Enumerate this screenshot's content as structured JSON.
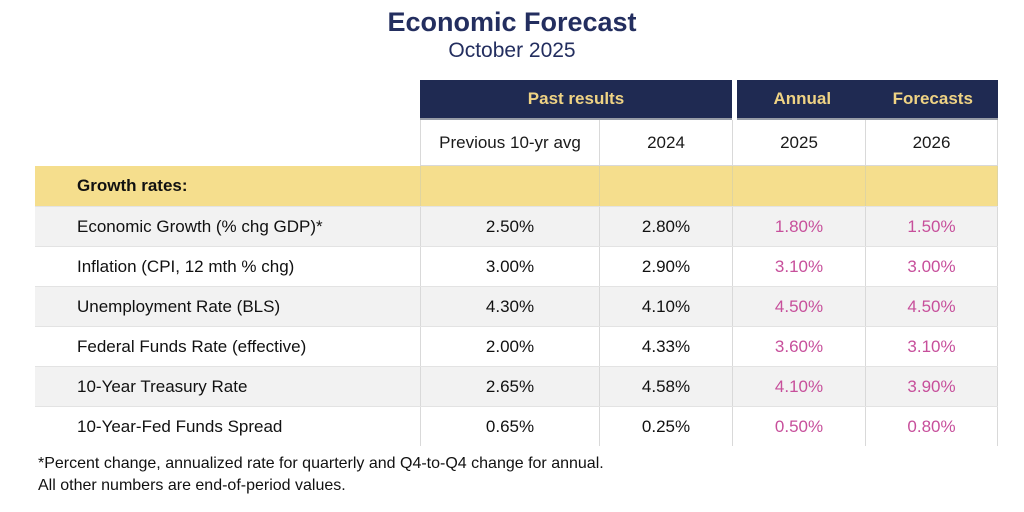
{
  "title": "Economic Forecast",
  "subtitle": "October 2025",
  "header": {
    "past_results": "Past results",
    "annual": "Annual",
    "forecasts": "Forecasts"
  },
  "columns": [
    "Previous 10-yr avg",
    "2024",
    "2025",
    "2026"
  ],
  "section_label": "Growth rates:",
  "table": {
    "rows": [
      {
        "label": "Economic Growth (% chg GDP)*",
        "values": [
          "2.50%",
          "2.80%",
          "1.80%",
          "1.50%"
        ]
      },
      {
        "label": "Inflation (CPI, 12 mth % chg)",
        "values": [
          "3.00%",
          "2.90%",
          "3.10%",
          "3.00%"
        ]
      },
      {
        "label": "Unemployment Rate (BLS)",
        "values": [
          "4.30%",
          "4.10%",
          "4.50%",
          "4.50%"
        ]
      },
      {
        "label": "Federal Funds Rate (effective)",
        "values": [
          "2.00%",
          "4.33%",
          "3.60%",
          "3.10%"
        ]
      },
      {
        "label": "10-Year Treasury Rate",
        "values": [
          "2.65%",
          "4.58%",
          "4.10%",
          "3.90%"
        ]
      },
      {
        "label": "10-Year-Fed Funds Spread",
        "values": [
          "0.65%",
          "0.25%",
          "0.50%",
          "0.80%"
        ]
      }
    ]
  },
  "footnote": {
    "line1": "*Percent change, annualized rate for quarterly and Q4-to-Q4 change for annual.",
    "line2": "All other numbers are end-of-period values."
  },
  "colors": {
    "navy_header_bg": "#1f2a52",
    "header_text_yellow": "#efd384",
    "title_navy": "#232e5f",
    "section_band_yellow": "#f5de8d",
    "forecast_pink": "#c74f9b",
    "row_stripe_gray": "#f2f2f2"
  },
  "chart_data": {
    "type": "table",
    "title": "Economic Forecast",
    "subtitle": "October 2025",
    "column_groups": [
      {
        "label": "Past results",
        "columns": [
          "Previous 10-yr avg",
          "2024"
        ]
      },
      {
        "label": "Annual Forecasts",
        "columns": [
          "2025",
          "2026"
        ]
      }
    ],
    "columns": [
      "Previous 10-yr avg",
      "2024",
      "2025",
      "2026"
    ],
    "section": "Growth rates:",
    "rows": [
      {
        "label": "Economic Growth (% chg GDP)*",
        "values_pct": [
          2.5,
          2.8,
          1.8,
          1.5
        ]
      },
      {
        "label": "Inflation (CPI, 12 mth % chg)",
        "values_pct": [
          3.0,
          2.9,
          3.1,
          3.0
        ]
      },
      {
        "label": "Unemployment Rate (BLS)",
        "values_pct": [
          4.3,
          4.1,
          4.5,
          4.5
        ]
      },
      {
        "label": "Federal Funds Rate (effective)",
        "values_pct": [
          2.0,
          4.33,
          3.6,
          3.1
        ]
      },
      {
        "label": "10-Year Treasury Rate",
        "values_pct": [
          2.65,
          4.58,
          4.1,
          3.9
        ]
      },
      {
        "label": "10-Year-Fed Funds Spread",
        "values_pct": [
          0.65,
          0.25,
          0.5,
          0.8
        ]
      }
    ],
    "footnote": "*Percent change, annualized rate for quarterly and Q4-to-Q4 change for annual. All other numbers are end-of-period values."
  }
}
